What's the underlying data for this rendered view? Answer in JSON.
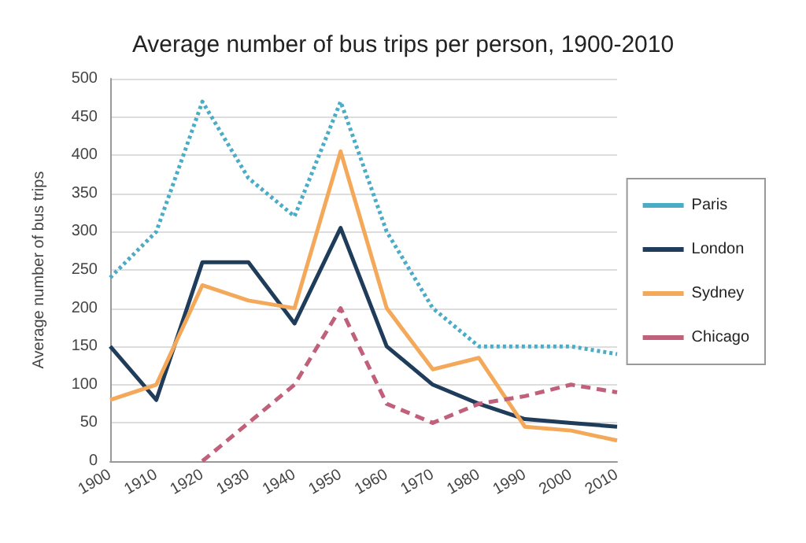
{
  "chart_data": {
    "type": "line",
    "title": "Average number of bus trips per person, 1900-2010",
    "ylabel": "Average number of bus trips",
    "categories": [
      "1900",
      "1910",
      "1920",
      "1930",
      "1940",
      "1950",
      "1960",
      "1970",
      "1980",
      "1990",
      "2000",
      "2010"
    ],
    "series": [
      {
        "name": "Paris",
        "color": "#4bacc6",
        "line_style": "dotted",
        "values": [
          240,
          300,
          470,
          370,
          320,
          470,
          300,
          200,
          150,
          150,
          150,
          140
        ]
      },
      {
        "name": "London",
        "color": "#1f3d5a",
        "line_style": "solid",
        "values": [
          150,
          80,
          260,
          260,
          180,
          305,
          150,
          100,
          75,
          55,
          50,
          45
        ]
      },
      {
        "name": "Sydney",
        "color": "#f4a95a",
        "line_style": "solid",
        "values": [
          80,
          100,
          230,
          210,
          200,
          405,
          200,
          120,
          135,
          45,
          40,
          27
        ]
      },
      {
        "name": "Chicago",
        "color": "#c0607a",
        "line_style": "dashed",
        "values": [
          null,
          null,
          0,
          50,
          100,
          200,
          75,
          50,
          75,
          85,
          100,
          90
        ]
      }
    ],
    "ylim": [
      0,
      500
    ],
    "yticks": [
      0,
      50,
      100,
      150,
      200,
      250,
      300,
      350,
      400,
      450,
      500
    ],
    "grid": "y",
    "legend": "right",
    "marker": "none"
  }
}
